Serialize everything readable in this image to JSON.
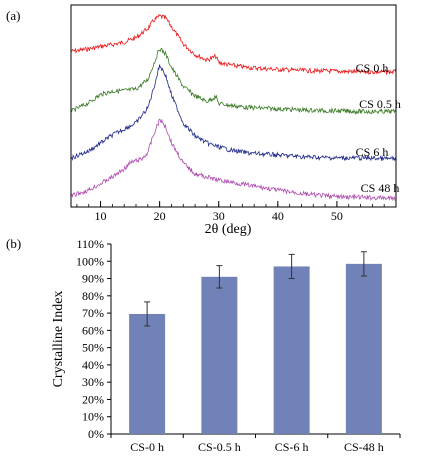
{
  "chart_data": [
    {
      "panel_label": "(a)",
      "type": "line",
      "xlabel": "2θ (deg)",
      "ylabel": "",
      "xlim": [
        5,
        60
      ],
      "xticks": [
        10,
        20,
        30,
        40,
        50
      ],
      "x_tick_labels": [
        "10",
        "20",
        "30",
        "40",
        "50"
      ],
      "y_ticks_shown": false,
      "grid": false,
      "legend": "labels placed at right end of each curve",
      "series": [
        {
          "name": "CS 0 h",
          "color": "#e8191b",
          "x": [
            5,
            8,
            10,
            12,
            14,
            16,
            18,
            19,
            20,
            21,
            22,
            24,
            26,
            28,
            29.5,
            30,
            32,
            35,
            40,
            45,
            50,
            55,
            60
          ],
          "y": [
            0.38,
            0.42,
            0.46,
            0.49,
            0.53,
            0.6,
            0.75,
            0.88,
            0.95,
            0.92,
            0.78,
            0.5,
            0.33,
            0.24,
            0.3,
            0.2,
            0.16,
            0.12,
            0.09,
            0.07,
            0.06,
            0.05,
            0.05
          ]
        },
        {
          "name": "CS 0.5 h",
          "color": "#3a7a25",
          "x": [
            5,
            8,
            10,
            12,
            14,
            16,
            18,
            19,
            20,
            21,
            22,
            24,
            26,
            28,
            29.5,
            30,
            32,
            35,
            40,
            45,
            50,
            55,
            60
          ],
          "y": [
            0.05,
            0.18,
            0.3,
            0.35,
            0.36,
            0.38,
            0.52,
            0.75,
            0.98,
            0.9,
            0.7,
            0.42,
            0.28,
            0.2,
            0.27,
            0.17,
            0.14,
            0.11,
            0.09,
            0.07,
            0.06,
            0.05,
            0.05
          ]
        },
        {
          "name": "CS 6 h",
          "color": "#1f2a8c",
          "x": [
            5,
            8,
            10,
            12,
            14,
            16,
            18,
            19,
            20,
            21,
            22,
            24,
            26,
            28,
            30,
            32,
            35,
            40,
            45,
            50,
            55,
            60
          ],
          "y": [
            0.05,
            0.12,
            0.2,
            0.28,
            0.34,
            0.4,
            0.55,
            0.75,
            0.98,
            0.88,
            0.68,
            0.4,
            0.27,
            0.2,
            0.16,
            0.13,
            0.1,
            0.08,
            0.06,
            0.05,
            0.05,
            0.04
          ]
        },
        {
          "name": "CS 48 h",
          "color": "#b04cb0",
          "x": [
            5,
            8,
            10,
            12,
            14,
            15,
            16,
            17,
            18,
            19,
            20,
            21,
            22,
            24,
            26,
            28,
            30,
            32,
            35,
            40,
            45,
            50,
            55,
            60
          ],
          "y": [
            0.05,
            0.12,
            0.2,
            0.28,
            0.38,
            0.45,
            0.48,
            0.5,
            0.58,
            0.8,
            0.98,
            0.9,
            0.7,
            0.45,
            0.32,
            0.28,
            0.24,
            0.22,
            0.18,
            0.12,
            0.07,
            0.04,
            0.03,
            0.02
          ]
        }
      ]
    },
    {
      "panel_label": "(b)",
      "type": "bar",
      "categories": [
        "CS-0 h",
        "CS-0.5 h",
        "CS-6 h",
        "CS-48 h"
      ],
      "values": [
        69.5,
        91,
        97,
        98.5
      ],
      "errors": [
        7,
        6.5,
        7,
        7
      ],
      "ylabel": "Crystalline Index",
      "xlabel": "",
      "ylim": [
        0,
        110
      ],
      "yticks": [
        0,
        10,
        20,
        30,
        40,
        50,
        60,
        70,
        80,
        90,
        100,
        110
      ],
      "y_tick_labels": [
        "0%",
        "10%",
        "20%",
        "30%",
        "40%",
        "50%",
        "60%",
        "70%",
        "80%",
        "90%",
        "100%",
        "110%"
      ],
      "bar_color": "#7182b8",
      "grid": false
    }
  ]
}
